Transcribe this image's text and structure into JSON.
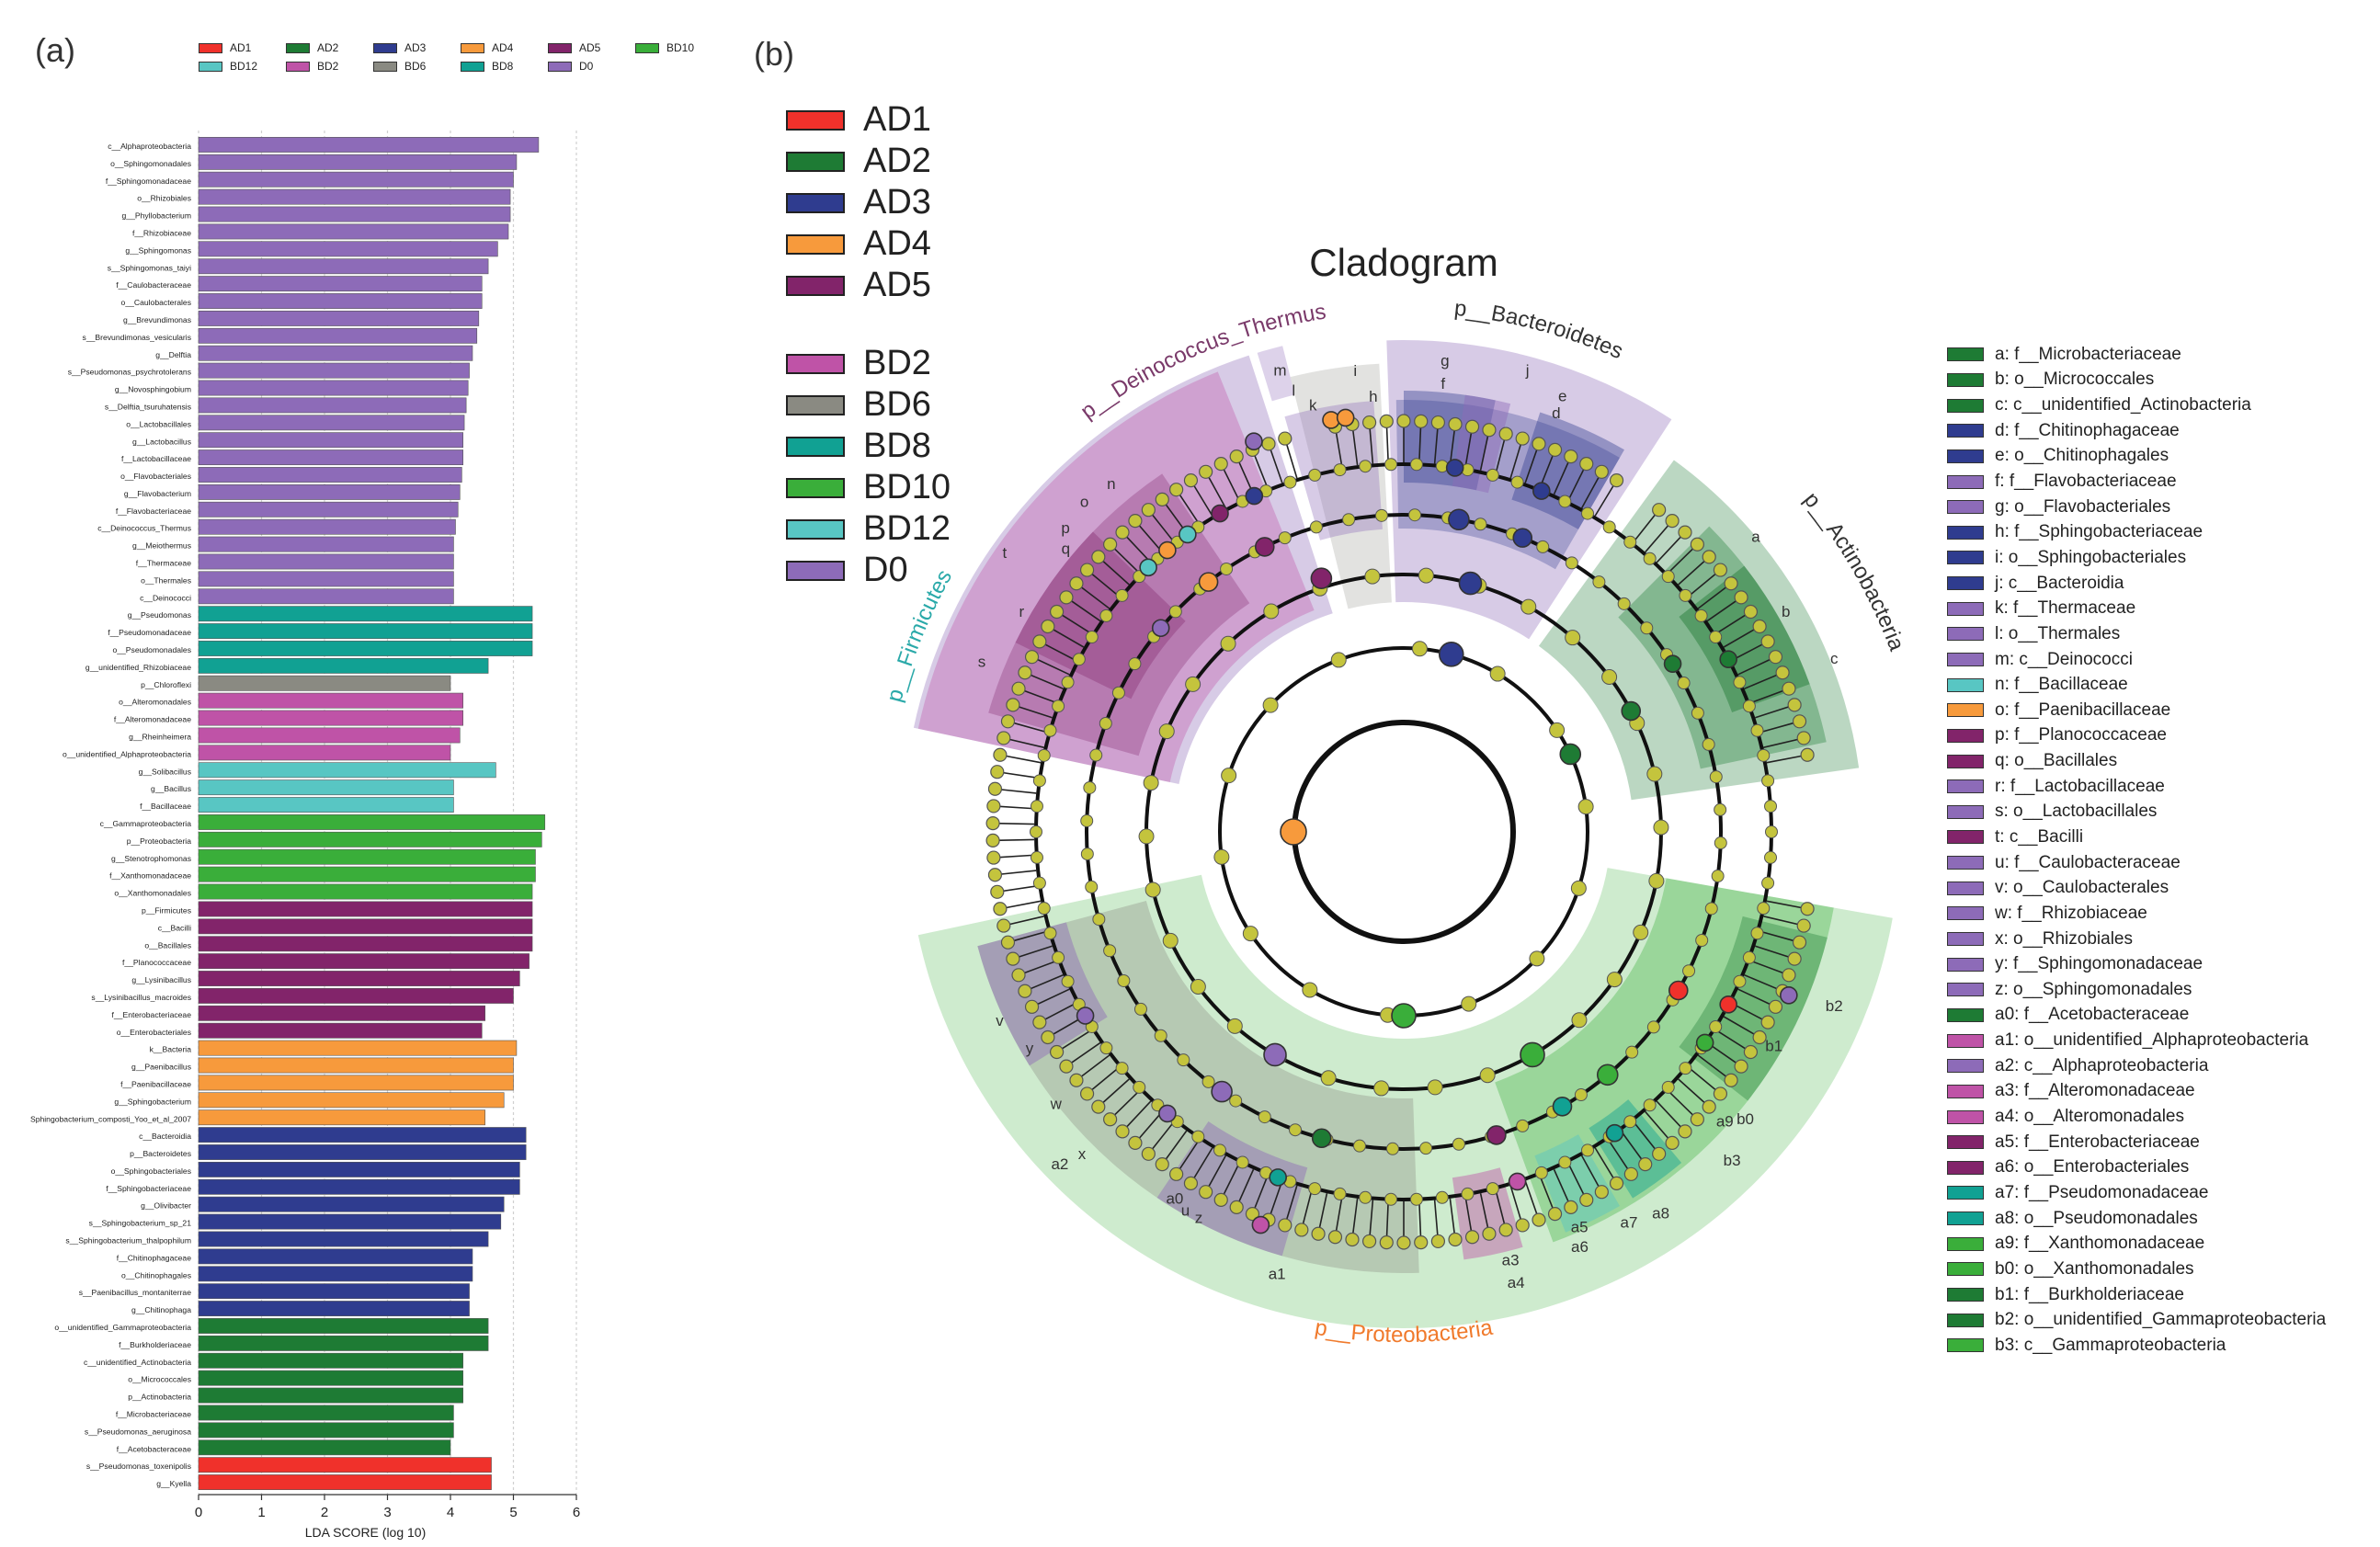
{
  "labels": {
    "panel_a": "(a)",
    "panel_b": "(b)"
  },
  "groups": [
    {
      "id": "AD1",
      "color": "#f0312b"
    },
    {
      "id": "AD2",
      "color": "#1e7b34"
    },
    {
      "id": "AD3",
      "color": "#2f3c8f"
    },
    {
      "id": "AD4",
      "color": "#f79a3c"
    },
    {
      "id": "AD5",
      "color": "#82246a"
    },
    {
      "id": "BD2",
      "color": "#bf53a7"
    },
    {
      "id": "BD6",
      "color": "#8a8a82"
    },
    {
      "id": "BD8",
      "color": "#11a193"
    },
    {
      "id": "BD10",
      "color": "#3aae3a"
    },
    {
      "id": "BD12",
      "color": "#58c6c3"
    },
    {
      "id": "D0",
      "color": "#8d6bb8"
    }
  ],
  "chart_data": [
    {
      "type": "bar",
      "orientation": "horizontal",
      "title": "",
      "xlabel": "LDA SCORE (log 10)",
      "xlim": [
        0,
        6
      ],
      "xticks": [
        "0",
        "1",
        "2",
        "3",
        "4",
        "5",
        "6"
      ],
      "grid": true,
      "legend_position": "top",
      "legend_order": [
        "AD1",
        "AD2",
        "AD3",
        "AD4",
        "AD5",
        "BD10",
        "BD12",
        "BD2",
        "BD6",
        "BD8",
        "D0"
      ],
      "bars": [
        {
          "label": "c__Alphaproteobacteria",
          "value": 5.4,
          "group": "D0"
        },
        {
          "label": "o__Sphingomonadales",
          "value": 5.05,
          "group": "D0"
        },
        {
          "label": "f__Sphingomonadaceae",
          "value": 5.0,
          "group": "D0"
        },
        {
          "label": "o__Rhizobiales",
          "value": 4.95,
          "group": "D0"
        },
        {
          "label": "g__Phyllobacterium",
          "value": 4.95,
          "group": "D0"
        },
        {
          "label": "f__Rhizobiaceae",
          "value": 4.92,
          "group": "D0"
        },
        {
          "label": "g__Sphingomonas",
          "value": 4.75,
          "group": "D0"
        },
        {
          "label": "s__Sphingomonas_taiyi",
          "value": 4.6,
          "group": "D0"
        },
        {
          "label": "f__Caulobacteraceae",
          "value": 4.5,
          "group": "D0"
        },
        {
          "label": "o__Caulobacterales",
          "value": 4.5,
          "group": "D0"
        },
        {
          "label": "g__Brevundimonas",
          "value": 4.45,
          "group": "D0"
        },
        {
          "label": "s__Brevundimonas_vesicularis",
          "value": 4.42,
          "group": "D0"
        },
        {
          "label": "g__Delftia",
          "value": 4.35,
          "group": "D0"
        },
        {
          "label": "s__Pseudomonas_psychrotolerans",
          "value": 4.3,
          "group": "D0"
        },
        {
          "label": "g__Novosphingobium",
          "value": 4.28,
          "group": "D0"
        },
        {
          "label": "s__Delftia_tsuruhatensis",
          "value": 4.25,
          "group": "D0"
        },
        {
          "label": "o__Lactobacillales",
          "value": 4.22,
          "group": "D0"
        },
        {
          "label": "g__Lactobacillus",
          "value": 4.2,
          "group": "D0"
        },
        {
          "label": "f__Lactobacillaceae",
          "value": 4.2,
          "group": "D0"
        },
        {
          "label": "o__Flavobacteriales",
          "value": 4.18,
          "group": "D0"
        },
        {
          "label": "g__Flavobacterium",
          "value": 4.15,
          "group": "D0"
        },
        {
          "label": "f__Flavobacteriaceae",
          "value": 4.12,
          "group": "D0"
        },
        {
          "label": "c__Deinococcus_Thermus",
          "value": 4.08,
          "group": "D0"
        },
        {
          "label": "g__Meiothermus",
          "value": 4.05,
          "group": "D0"
        },
        {
          "label": "f__Thermaceae",
          "value": 4.05,
          "group": "D0"
        },
        {
          "label": "o__Thermales",
          "value": 4.05,
          "group": "D0"
        },
        {
          "label": "c__Deinococci",
          "value": 4.05,
          "group": "D0"
        },
        {
          "label": "g__Pseudomonas",
          "value": 5.3,
          "group": "BD8"
        },
        {
          "label": "f__Pseudomonadaceae",
          "value": 5.3,
          "group": "BD8"
        },
        {
          "label": "o__Pseudomonadales",
          "value": 5.3,
          "group": "BD8"
        },
        {
          "label": "g__unidentified_Rhizobiaceae",
          "value": 4.6,
          "group": "BD8"
        },
        {
          "label": "p__Chloroflexi",
          "value": 4.0,
          "group": "BD6"
        },
        {
          "label": "o__Alteromonadales",
          "value": 4.2,
          "group": "BD2"
        },
        {
          "label": "f__Alteromonadaceae",
          "value": 4.2,
          "group": "BD2"
        },
        {
          "label": "g__Rheinheimera",
          "value": 4.15,
          "group": "BD2"
        },
        {
          "label": "o__unidentified_Alphaproteobacteria",
          "value": 4.0,
          "group": "BD2"
        },
        {
          "label": "g__Solibacillus",
          "value": 4.72,
          "group": "BD12"
        },
        {
          "label": "g__Bacillus",
          "value": 4.05,
          "group": "BD12"
        },
        {
          "label": "f__Bacillaceae",
          "value": 4.05,
          "group": "BD12"
        },
        {
          "label": "c__Gammaproteobacteria",
          "value": 5.5,
          "group": "BD10"
        },
        {
          "label": "p__Proteobacteria",
          "value": 5.45,
          "group": "BD10"
        },
        {
          "label": "g__Stenotrophomonas",
          "value": 5.35,
          "group": "BD10"
        },
        {
          "label": "f__Xanthomonadaceae",
          "value": 5.35,
          "group": "BD10"
        },
        {
          "label": "o__Xanthomonadales",
          "value": 5.3,
          "group": "BD10"
        },
        {
          "label": "p__Firmicutes",
          "value": 5.3,
          "group": "AD5"
        },
        {
          "label": "c__Bacilli",
          "value": 5.3,
          "group": "AD5"
        },
        {
          "label": "o__Bacillales",
          "value": 5.3,
          "group": "AD5"
        },
        {
          "label": "f__Planococcaceae",
          "value": 5.25,
          "group": "AD5"
        },
        {
          "label": "g__Lysinibacillus",
          "value": 5.1,
          "group": "AD5"
        },
        {
          "label": "s__Lysinibacillus_macroides",
          "value": 5.0,
          "group": "AD5"
        },
        {
          "label": "f__Enterobacteriaceae",
          "value": 4.55,
          "group": "AD5"
        },
        {
          "label": "o__Enterobacteriales",
          "value": 4.5,
          "group": "AD5"
        },
        {
          "label": "k__Bacteria",
          "value": 5.05,
          "group": "AD4"
        },
        {
          "label": "g__Paenibacillus",
          "value": 5.0,
          "group": "AD4"
        },
        {
          "label": "f__Paenibacillaceae",
          "value": 5.0,
          "group": "AD4"
        },
        {
          "label": "g__Sphingobacterium",
          "value": 4.85,
          "group": "AD4"
        },
        {
          "label": "Sphingobacterium_composti_Yoo_et_al_2007",
          "value": 4.55,
          "group": "AD4"
        },
        {
          "label": "c__Bacteroidia",
          "value": 5.2,
          "group": "AD3"
        },
        {
          "label": "p__Bacteroidetes",
          "value": 5.2,
          "group": "AD3"
        },
        {
          "label": "o__Sphingobacteriales",
          "value": 5.1,
          "group": "AD3"
        },
        {
          "label": "f__Sphingobacteriaceae",
          "value": 5.1,
          "group": "AD3"
        },
        {
          "label": "g__Olivibacter",
          "value": 4.85,
          "group": "AD3"
        },
        {
          "label": "s__Sphingobacterium_sp_21",
          "value": 4.8,
          "group": "AD3"
        },
        {
          "label": "s__Sphingobacterium_thalpophilum",
          "value": 4.6,
          "group": "AD3"
        },
        {
          "label": "f__Chitinophagaceae",
          "value": 4.35,
          "group": "AD3"
        },
        {
          "label": "o__Chitinophagales",
          "value": 4.35,
          "group": "AD3"
        },
        {
          "label": "s__Paenibacillus_montaniterrae",
          "value": 4.3,
          "group": "AD3"
        },
        {
          "label": "g__Chitinophaga",
          "value": 4.3,
          "group": "AD3"
        },
        {
          "label": "o__unidentified_Gammaproteobacteria",
          "value": 4.6,
          "group": "AD2"
        },
        {
          "label": "f__Burkholderiaceae",
          "value": 4.6,
          "group": "AD2"
        },
        {
          "label": "c__unidentified_Actinobacteria",
          "value": 4.2,
          "group": "AD2"
        },
        {
          "label": "o__Micrococcales",
          "value": 4.2,
          "group": "AD2"
        },
        {
          "label": "p__Actinobacteria",
          "value": 4.2,
          "group": "AD2"
        },
        {
          "label": "f__Microbacteriaceae",
          "value": 4.05,
          "group": "AD2"
        },
        {
          "label": "s__Pseudomonas_aeruginosa",
          "value": 4.05,
          "group": "AD2"
        },
        {
          "label": "f__Acetobacteraceae",
          "value": 4.0,
          "group": "AD2"
        },
        {
          "label": "s__Pseudomonas_toxenipolis",
          "value": 4.65,
          "group": "AD1"
        },
        {
          "label": "g__Kyella",
          "value": 4.65,
          "group": "AD1"
        }
      ]
    },
    {
      "type": "cladogram",
      "title": "Cladogram",
      "legend_groups": [
        "AD1",
        "AD2",
        "AD3",
        "AD4",
        "AD5",
        "BD2",
        "BD6",
        "BD8",
        "BD10",
        "BD12",
        "D0"
      ],
      "phylum_labels": [
        "p__Deinococcus_Thermus",
        "p__Bacteroidetes",
        "p__Actinobacteria",
        "p__Firmicutes",
        "p__Proteobacteria"
      ],
      "sector_letters": [
        "a",
        "b",
        "c",
        "d",
        "e",
        "f",
        "g",
        "h",
        "i",
        "j",
        "k",
        "l",
        "m",
        "n",
        "o",
        "p",
        "q",
        "r",
        "s",
        "t",
        "u",
        "v",
        "w",
        "x",
        "y",
        "z",
        "a0",
        "a1",
        "a2",
        "a3",
        "a4",
        "a5",
        "a6",
        "a7",
        "a8",
        "a9",
        "b0",
        "b1",
        "b2",
        "b3"
      ],
      "taxa_legend": [
        {
          "key": "a",
          "name": "f__Microbacteriaceae",
          "group": "AD2"
        },
        {
          "key": "b",
          "name": "o__Micrococcales",
          "group": "AD2"
        },
        {
          "key": "c",
          "name": "c__unidentified_Actinobacteria",
          "group": "AD2"
        },
        {
          "key": "d",
          "name": "f__Chitinophagaceae",
          "group": "AD3"
        },
        {
          "key": "e",
          "name": "o__Chitinophagales",
          "group": "AD3"
        },
        {
          "key": "f",
          "name": "f__Flavobacteriaceae",
          "group": "D0"
        },
        {
          "key": "g",
          "name": "o__Flavobacteriales",
          "group": "D0"
        },
        {
          "key": "h",
          "name": "f__Sphingobacteriaceae",
          "group": "AD3"
        },
        {
          "key": "i",
          "name": "o__Sphingobacteriales",
          "group": "AD3"
        },
        {
          "key": "j",
          "name": "c__Bacteroidia",
          "group": "AD3"
        },
        {
          "key": "k",
          "name": "f__Thermaceae",
          "group": "D0"
        },
        {
          "key": "l",
          "name": "o__Thermales",
          "group": "D0"
        },
        {
          "key": "m",
          "name": "c__Deinococci",
          "group": "D0"
        },
        {
          "key": "n",
          "name": "f__Bacillaceae",
          "group": "BD12"
        },
        {
          "key": "o",
          "name": "f__Paenibacillaceae",
          "group": "AD4"
        },
        {
          "key": "p",
          "name": "f__Planococcaceae",
          "group": "AD5"
        },
        {
          "key": "q",
          "name": "o__Bacillales",
          "group": "AD5"
        },
        {
          "key": "r",
          "name": "f__Lactobacillaceae",
          "group": "D0"
        },
        {
          "key": "s",
          "name": "o__Lactobacillales",
          "group": "D0"
        },
        {
          "key": "t",
          "name": "c__Bacilli",
          "group": "AD5"
        },
        {
          "key": "u",
          "name": "f__Caulobacteraceae",
          "group": "D0"
        },
        {
          "key": "v",
          "name": "o__Caulobacterales",
          "group": "D0"
        },
        {
          "key": "w",
          "name": "f__Rhizobiaceae",
          "group": "D0"
        },
        {
          "key": "x",
          "name": "o__Rhizobiales",
          "group": "D0"
        },
        {
          "key": "y",
          "name": "f__Sphingomonadaceae",
          "group": "D0"
        },
        {
          "key": "z",
          "name": "o__Sphingomonadales",
          "group": "D0"
        },
        {
          "key": "a0",
          "name": "f__Acetobacteraceae",
          "group": "AD2"
        },
        {
          "key": "a1",
          "name": "o__unidentified_Alphaproteobacteria",
          "group": "BD2"
        },
        {
          "key": "a2",
          "name": "c__Alphaproteobacteria",
          "group": "D0"
        },
        {
          "key": "a3",
          "name": "f__Alteromonadaceae",
          "group": "BD2"
        },
        {
          "key": "a4",
          "name": "o__Alteromonadales",
          "group": "BD2"
        },
        {
          "key": "a5",
          "name": "f__Enterobacteriaceae",
          "group": "AD5"
        },
        {
          "key": "a6",
          "name": "o__Enterobacteriales",
          "group": "AD5"
        },
        {
          "key": "a7",
          "name": "f__Pseudomonadaceae",
          "group": "BD8"
        },
        {
          "key": "a8",
          "name": "o__Pseudomonadales",
          "group": "BD8"
        },
        {
          "key": "a9",
          "name": "f__Xanthomonadaceae",
          "group": "BD10"
        },
        {
          "key": "b0",
          "name": "o__Xanthomonadales",
          "group": "BD10"
        },
        {
          "key": "b1",
          "name": "f__Burkholderiaceae",
          "group": "AD2"
        },
        {
          "key": "b2",
          "name": "o__unidentified_Gammaproteobacteria",
          "group": "AD2"
        },
        {
          "key": "b3",
          "name": "c__Gammaproteobacteria",
          "group": "BD10"
        }
      ]
    }
  ]
}
